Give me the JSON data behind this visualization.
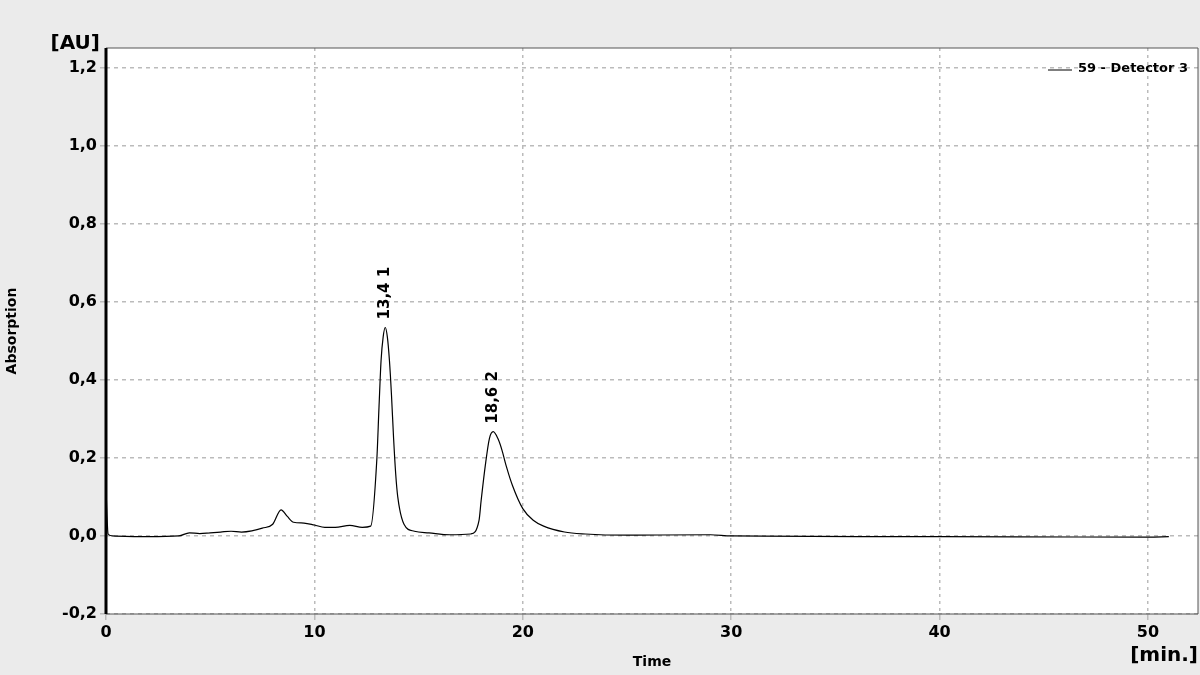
{
  "chart_data": {
    "type": "line",
    "xlabel": "Time",
    "ylabel": "Absorption",
    "x": [
      0,
      0.1,
      0.3,
      2,
      3.5,
      4,
      4.5,
      5,
      5.5,
      6,
      6.5,
      7,
      7.5,
      8,
      8.4,
      8.7,
      9,
      9.5,
      10,
      10.5,
      11,
      11.7,
      12.3,
      12.7,
      13.0,
      13.1,
      13.2,
      13.3,
      13.4,
      13.5,
      13.6,
      13.7,
      13.8,
      13.9,
      14.0,
      14.3,
      14.8,
      15.5,
      16.5,
      17.5,
      17.9,
      18.0,
      18.2,
      18.4,
      18.58,
      18.8,
      19.0,
      19.2,
      19.5,
      20,
      20.5,
      21,
      22,
      23,
      25,
      29,
      30,
      40,
      50,
      51
    ],
    "series": [
      {
        "name": "59 - Detector 3",
        "color": "#000000",
        "values": [
          0.12,
          0.005,
          0.0,
          -0.002,
          0.0,
          0.008,
          0.006,
          0.008,
          0.01,
          0.012,
          0.01,
          0.013,
          0.02,
          0.03,
          0.067,
          0.05,
          0.035,
          0.033,
          0.028,
          0.022,
          0.022,
          0.027,
          0.022,
          0.025,
          0.2,
          0.33,
          0.45,
          0.51,
          0.534,
          0.51,
          0.45,
          0.36,
          0.25,
          0.16,
          0.1,
          0.03,
          0.012,
          0.008,
          0.003,
          0.005,
          0.04,
          0.09,
          0.18,
          0.25,
          0.267,
          0.25,
          0.22,
          0.18,
          0.13,
          0.07,
          0.04,
          0.025,
          0.01,
          0.005,
          0.002,
          0.003,
          0.0,
          -0.002,
          -0.003,
          -0.002
        ]
      }
    ],
    "xlim": [
      0,
      52.4
    ],
    "xticks": [
      0,
      10,
      20,
      30,
      40,
      50
    ],
    "ylim": [
      -0.2,
      1.25
    ],
    "yticks": [
      {
        "value": -0.2,
        "label": "-0,2"
      },
      {
        "value": 0,
        "label": "0,0"
      },
      {
        "value": 0.2,
        "label": "0,2"
      },
      {
        "value": 0.4,
        "label": "0,4"
      },
      {
        "value": 0.6,
        "label": "0,6"
      },
      {
        "value": 0.8,
        "label": "0,8"
      },
      {
        "value": 1.0,
        "label": "1,0"
      },
      {
        "value": 1.2,
        "label": "1,2"
      }
    ],
    "grid": true,
    "legend": "top right",
    "marker": "none",
    "line_style": "solid",
    "annotations": [
      "[AU]",
      "[min.]",
      {
        "text": "13,4 1",
        "x": 13.4,
        "y": 0.534
      },
      {
        "text": "18,6 2",
        "x": 18.58,
        "y": 0.267
      }
    ]
  }
}
